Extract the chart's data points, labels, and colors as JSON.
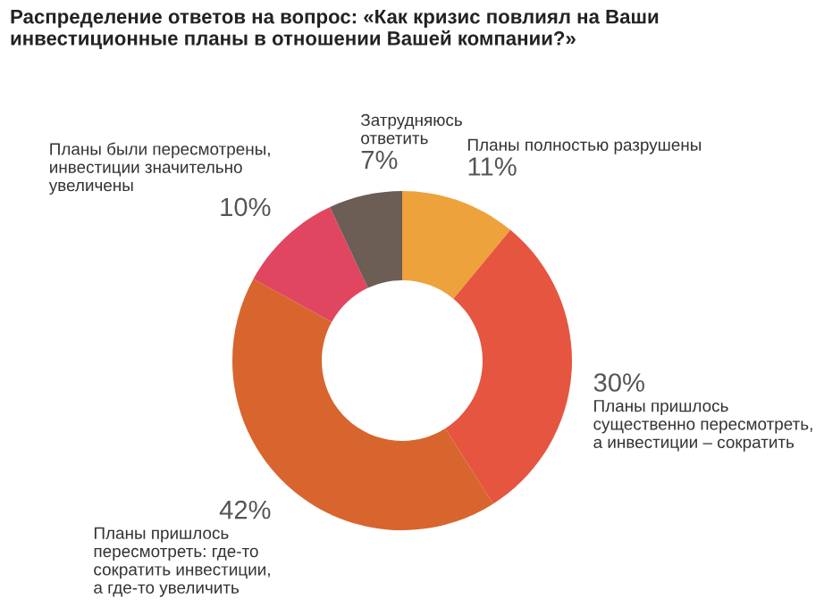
{
  "chart_data": {
    "type": "donut",
    "title": "Распределение ответов на вопрос: «Как кризис повлиял на Ваши\nинвестиционные планы в отношении Вашей компании?»",
    "categories": [
      "Планы полностью разрушены",
      "Планы пришлось\nсущественно пересмотреть,\nа инвестиции – сократить",
      "Планы пришлось\nпересмотреть: где-то\nсократить инвестиции,\nа где-то увеличить",
      "Планы были пересмотрены,\nинвестиции значительно\nувеличены",
      "Затрудняюсь\nответить"
    ],
    "values": [
      11,
      30,
      42,
      10,
      7
    ],
    "value_labels": [
      "11%",
      "30%",
      "42%",
      "10%",
      "7%"
    ],
    "colors": [
      "#eea23c",
      "#e5553f",
      "#d8652d",
      "#e04660",
      "#6c5d55"
    ]
  }
}
